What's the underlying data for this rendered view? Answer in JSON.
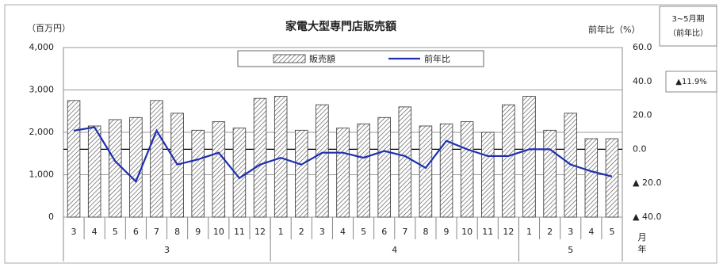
{
  "chart_data": {
    "type": "bar-line",
    "title": "家電大型専門店販売額",
    "y_label": "（百万円）",
    "y2_label": "前年比（%）",
    "x_label_month": "月",
    "x_label_year": "年",
    "annotation": {
      "lines": [
        "3~5月期",
        "（前年比）"
      ],
      "value": "▲11.9%"
    },
    "categories": [
      "3",
      "4",
      "5",
      "6",
      "7",
      "8",
      "9",
      "10",
      "11",
      "12",
      "1",
      "2",
      "3",
      "4",
      "5",
      "6",
      "7",
      "8",
      "9",
      "10",
      "11",
      "12",
      "1",
      "2",
      "3",
      "4",
      "5"
    ],
    "years": [
      "3",
      "3",
      "3",
      "3",
      "3",
      "3",
      "3",
      "3",
      "3",
      "3",
      "4",
      "4",
      "4",
      "4",
      "4",
      "4",
      "4",
      "4",
      "4",
      "4",
      "4",
      "4",
      "5",
      "5",
      "5",
      "5",
      "5"
    ],
    "series": [
      {
        "name": "販売額",
        "type": "bar",
        "color": "#555555",
        "values": [
          2750,
          2150,
          2300,
          2350,
          2750,
          2450,
          2050,
          2250,
          2100,
          2800,
          2850,
          2050,
          2650,
          2100,
          2200,
          2350,
          2600,
          2150,
          2200,
          2250,
          2000,
          2650,
          2850,
          2050,
          2450,
          1850,
          1850
        ]
      },
      {
        "name": "前年比",
        "type": "line",
        "axis": "y2",
        "color": "#1f2fb0",
        "values": [
          11,
          13,
          -7,
          -19,
          11,
          -9,
          -6,
          -2,
          -17,
          -9,
          -5,
          -9,
          -2,
          -2,
          -5,
          -1,
          -4,
          -11,
          5,
          0,
          -4,
          -4,
          0,
          0,
          -9,
          -13,
          -16
        ]
      }
    ],
    "ylim": [
      0,
      4000
    ],
    "yticks": [
      0,
      {
        "value": 1000,
        "label": "1,000"
      },
      {
        "value": 2000,
        "label": "2,000"
      },
      {
        "value": 3000,
        "label": "3,000"
      },
      {
        "value": 4000,
        "label": "4,000"
      }
    ],
    "y2lim": [
      -40,
      60
    ],
    "y2ticks": [
      {
        "value": -40,
        "label": "▲ 40.0"
      },
      {
        "value": -20,
        "label": "▲ 20.0"
      },
      {
        "value": 0,
        "label": "0.0"
      },
      {
        "value": 20,
        "label": "20.0"
      },
      {
        "value": 40,
        "label": "40.0"
      },
      {
        "value": 60,
        "label": "60.0"
      }
    ],
    "grid": true
  }
}
